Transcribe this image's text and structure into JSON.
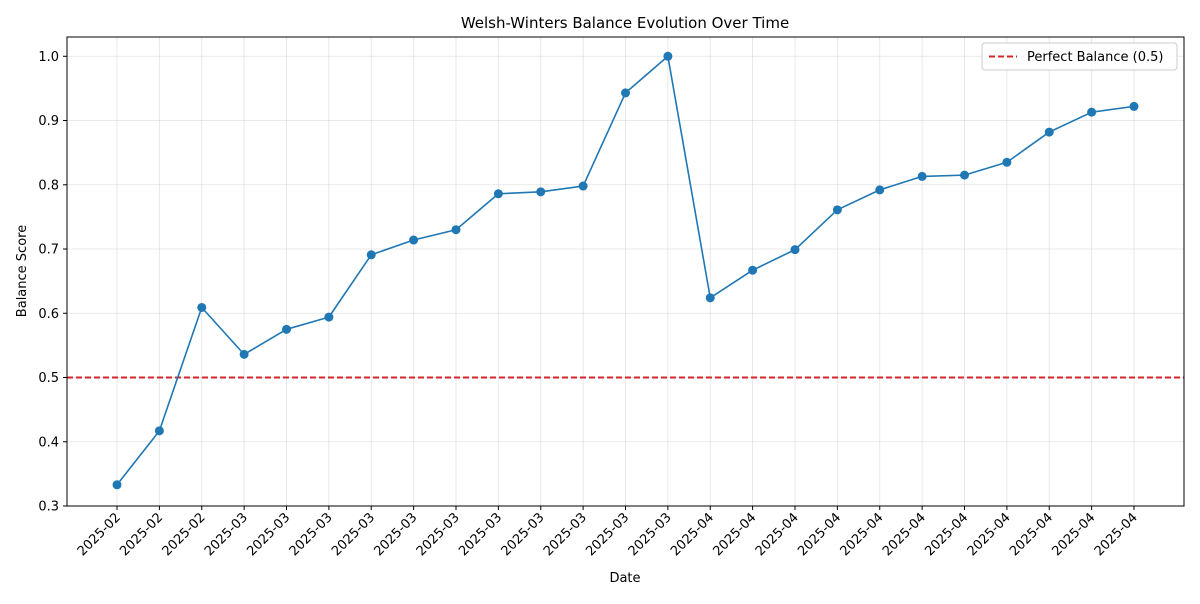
{
  "chart_data": {
    "type": "line",
    "title": "Welsh-Winters Balance Evolution Over Time",
    "xlabel": "Date",
    "ylabel": "Balance Score",
    "ylim": [
      0.3,
      1.03
    ],
    "yticks": [
      0.3,
      0.4,
      0.5,
      0.6,
      0.7,
      0.8,
      0.9,
      1.0
    ],
    "grid": true,
    "legend_position": "top-right",
    "x": [
      "2025-02",
      "2025-02",
      "2025-02",
      "2025-03",
      "2025-03",
      "2025-03",
      "2025-03",
      "2025-03",
      "2025-03",
      "2025-03",
      "2025-03",
      "2025-03",
      "2025-03",
      "2025-03",
      "2025-04",
      "2025-04",
      "2025-04",
      "2025-04",
      "2025-04",
      "2025-04",
      "2025-04",
      "2025-04",
      "2025-04",
      "2025-04",
      "2025-04"
    ],
    "series": [
      {
        "color": "#1f77b4",
        "marker": "circle",
        "values": [
          0.333,
          0.417,
          0.609,
          0.536,
          0.575,
          0.594,
          0.691,
          0.714,
          0.73,
          0.786,
          0.789,
          0.798,
          0.943,
          1.0,
          0.624,
          0.667,
          0.699,
          0.761,
          0.792,
          0.813,
          0.815,
          0.835,
          0.882,
          0.913,
          0.922
        ]
      }
    ],
    "reference_lines": [
      {
        "name": "Perfect Balance (0.5)",
        "y": 0.5,
        "color": "#d62728",
        "style": "dashed"
      }
    ]
  }
}
